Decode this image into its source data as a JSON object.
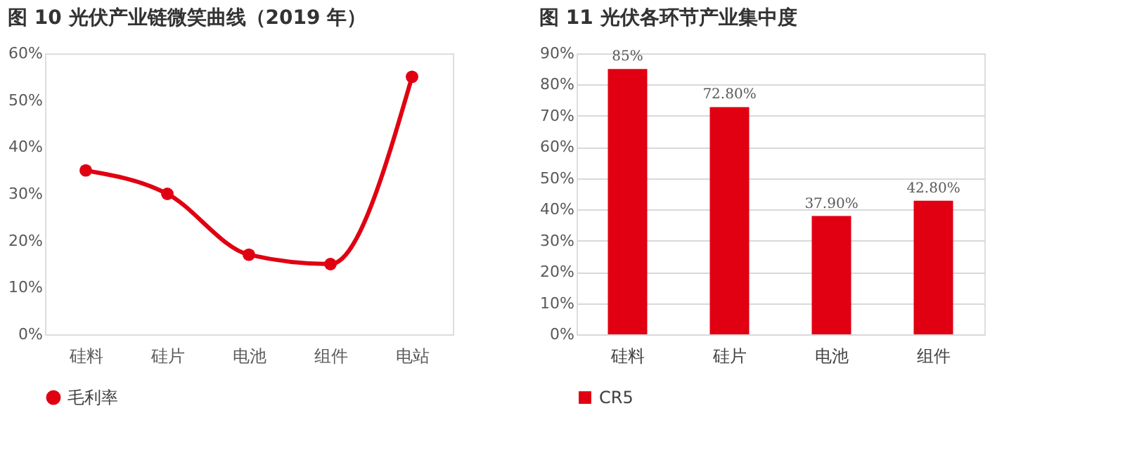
{
  "chart_data": [
    {
      "type": "line",
      "title": "图 10 光伏产业链微笑曲线（2019 年）",
      "categories": [
        "硅料",
        "硅片",
        "电池",
        "组件",
        "电站"
      ],
      "series": [
        {
          "name": "毛利率",
          "color": "#e00012",
          "values": [
            35,
            30,
            17,
            15,
            55
          ]
        }
      ],
      "ylim": [
        0,
        60
      ],
      "yticks": [
        {
          "value": 0,
          "label": "0%"
        },
        {
          "value": 10,
          "label": "10%"
        },
        {
          "value": 20,
          "label": "20%"
        },
        {
          "value": 30,
          "label": "30%"
        },
        {
          "value": 40,
          "label": "40%"
        },
        {
          "value": 50,
          "label": "50%"
        },
        {
          "value": 60,
          "label": "60%"
        }
      ],
      "grid": false,
      "legend": "bottom",
      "marker": "circle",
      "line_style": "solid"
    },
    {
      "type": "bar",
      "title": "图 11 光伏各环节产业集中度",
      "categories": [
        "硅料",
        "硅片",
        "电池",
        "组件"
      ],
      "series": [
        {
          "name": "CR5",
          "color": "#e00012",
          "values": [
            85,
            72.8,
            37.9,
            42.8
          ],
          "value_labels": [
            "85%",
            "72.80%",
            "37.90%",
            "42.80%"
          ]
        }
      ],
      "ylim": [
        0,
        90
      ],
      "yticks": [
        {
          "value": 0,
          "label": "0%"
        },
        {
          "value": 10,
          "label": "10%"
        },
        {
          "value": 20,
          "label": "20%"
        },
        {
          "value": 30,
          "label": "30%"
        },
        {
          "value": 40,
          "label": "40%"
        },
        {
          "value": 50,
          "label": "50%"
        },
        {
          "value": 60,
          "label": "60%"
        },
        {
          "value": 70,
          "label": "70%"
        },
        {
          "value": 80,
          "label": "80%"
        },
        {
          "value": 90,
          "label": "90%"
        }
      ],
      "grid": "y",
      "legend": "bottom"
    }
  ]
}
